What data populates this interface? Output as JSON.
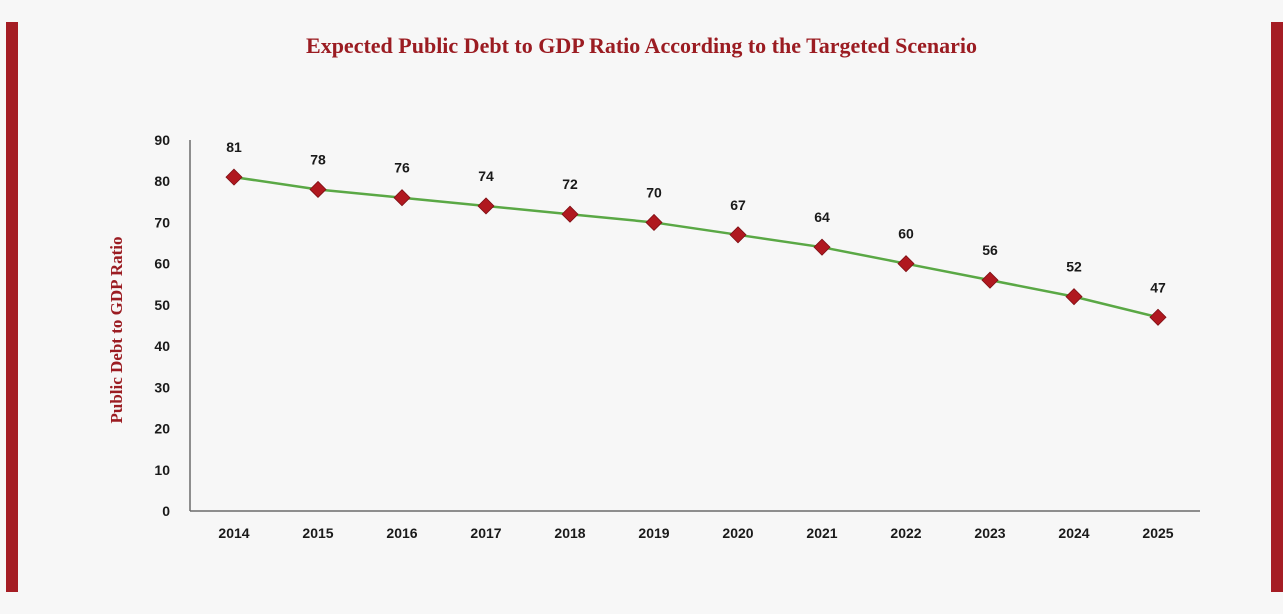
{
  "chart_data": {
    "type": "line",
    "title": "Expected Public Debt to GDP Ratio According to the Targeted Scenario",
    "xlabel": "",
    "ylabel": "Public Debt to GDP Ratio",
    "categories": [
      "2014",
      "2015",
      "2016",
      "2017",
      "2018",
      "2019",
      "2020",
      "2021",
      "2022",
      "2023",
      "2024",
      "2025"
    ],
    "series": [
      {
        "values": [
          81,
          78,
          76,
          74,
          72,
          70,
          67,
          64,
          60,
          56,
          52,
          47
        ]
      }
    ],
    "yticks": [
      0,
      10,
      20,
      30,
      40,
      50,
      60,
      70,
      80,
      90
    ],
    "ylim": [
      0,
      90
    ],
    "grid": false,
    "marker": "diamond",
    "line_color": "#5aa845",
    "marker_color": "#b0181f",
    "accent_color": "#a51d24",
    "title_color": "#9b1c22"
  }
}
